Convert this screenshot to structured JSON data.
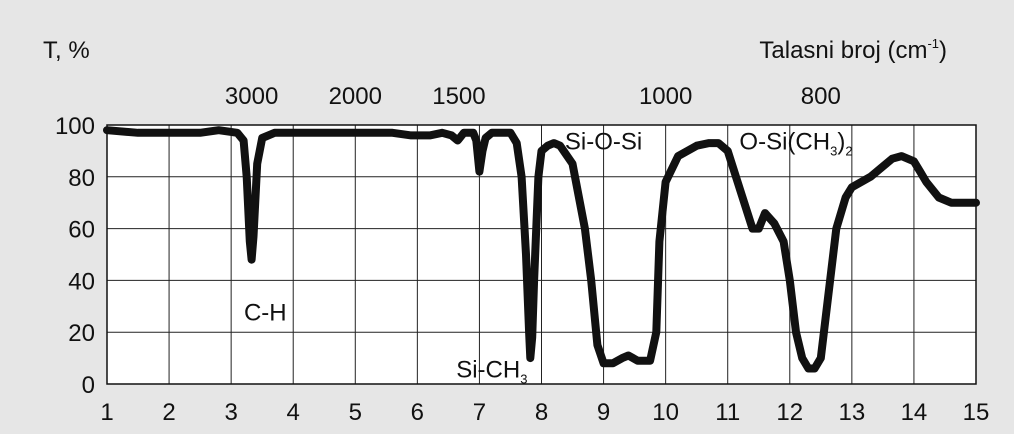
{
  "chart_data": {
    "type": "line",
    "title": "",
    "ylabel": "T, %",
    "xlabel_top": "Talasni broj (cm",
    "xlabel_top_sup": "-1",
    "xlabel_top_close": ")",
    "xlim": [
      1,
      15
    ],
    "ylim": [
      0,
      100
    ],
    "x_ticks": [
      1,
      2,
      3,
      4,
      5,
      6,
      7,
      8,
      9,
      10,
      11,
      12,
      13,
      14,
      15
    ],
    "y_ticks": [
      0,
      20,
      40,
      60,
      80,
      100
    ],
    "grid": true,
    "top_ticks": [
      {
        "label": "3000",
        "x": 3.33
      },
      {
        "label": "2000",
        "x": 5.0
      },
      {
        "label": "1500",
        "x": 6.67
      },
      {
        "label": "1000",
        "x": 10.0
      },
      {
        "label": "800",
        "x": 12.5
      }
    ],
    "annotations": [
      {
        "text": "C-H",
        "sub": "",
        "sub_tail": "",
        "x": 3.55,
        "y": 28
      },
      {
        "text": "Si-CH",
        "sub": "3",
        "sub_tail": "",
        "x": 7.2,
        "y": 6
      },
      {
        "text": "Si-O-Si",
        "sub": "",
        "sub_tail": "",
        "x": 9.0,
        "y": 94
      },
      {
        "text": "O-Si(CH",
        "sub": "3",
        "sub_tail": ")",
        "sub2": "2",
        "x": 12.1,
        "y": 94
      }
    ],
    "series": [
      {
        "x": [
          1.0,
          1.5,
          2.0,
          2.5,
          2.8,
          3.1,
          3.2,
          3.25,
          3.3,
          3.33,
          3.36,
          3.42,
          3.5,
          3.7,
          4.0,
          4.5,
          5.0,
          5.3,
          5.6,
          5.9,
          6.2,
          6.4,
          6.55,
          6.65,
          6.75,
          6.9,
          6.95,
          7.0,
          7.05,
          7.1,
          7.2,
          7.4,
          7.5,
          7.6,
          7.68,
          7.75,
          7.8,
          7.82,
          7.85,
          7.88,
          7.95,
          8.0,
          8.1,
          8.2,
          8.3,
          8.5,
          8.7,
          8.8,
          8.9,
          9.0,
          9.15,
          9.3,
          9.4,
          9.55,
          9.75,
          9.85,
          9.9,
          10.0,
          10.2,
          10.5,
          10.7,
          10.85,
          11.0,
          11.2,
          11.4,
          11.5,
          11.6,
          11.75,
          11.9,
          12.0,
          12.1,
          12.2,
          12.3,
          12.4,
          12.5,
          12.6,
          12.75,
          12.9,
          13.0,
          13.3,
          13.5,
          13.65,
          13.8,
          14.0,
          14.1,
          14.2,
          14.4,
          14.6,
          14.8,
          15.0
        ],
        "y": [
          98,
          97,
          97,
          97,
          98,
          97,
          94,
          80,
          55,
          48,
          57,
          85,
          95,
          97,
          97,
          97,
          97,
          97,
          97,
          96,
          96,
          97,
          96,
          94,
          97,
          97,
          94,
          82,
          90,
          95,
          97,
          97,
          97,
          93,
          80,
          50,
          20,
          10,
          18,
          40,
          80,
          90,
          92,
          93,
          92,
          85,
          60,
          40,
          15,
          8,
          8,
          10,
          11,
          9,
          9,
          20,
          55,
          78,
          88,
          92,
          93,
          93,
          90,
          75,
          60,
          60,
          66,
          62,
          55,
          40,
          20,
          10,
          6,
          6,
          10,
          30,
          60,
          72,
          76,
          80,
          84,
          87,
          88,
          86,
          82,
          78,
          72,
          70,
          70,
          70
        ]
      }
    ]
  }
}
